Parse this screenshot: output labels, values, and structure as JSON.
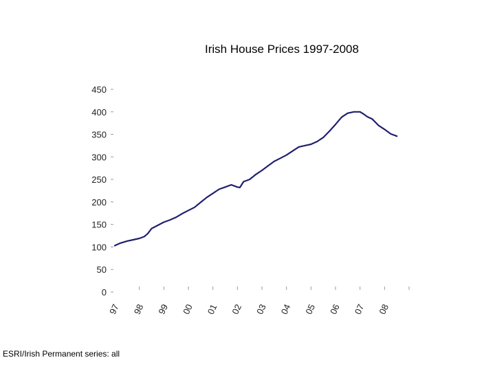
{
  "slide": {
    "title": "Irish House Prices 1997-2008",
    "source": "ESRI/Irish Permanent series: all"
  },
  "chart_data": {
    "type": "line",
    "title": "Irish House Prices 1997-2008",
    "xlabel": "",
    "ylabel": "",
    "ylim": [
      0,
      450
    ],
    "yticks": [
      0,
      50,
      100,
      150,
      200,
      250,
      300,
      350,
      400,
      450
    ],
    "ytick_labels": [
      "0",
      "50",
      "100",
      "150",
      "200",
      "250",
      "300",
      "350",
      "400",
      "450"
    ],
    "xlim": [
      1997,
      2009
    ],
    "xtick_labels": [
      "97",
      "98",
      "99",
      "00",
      "01",
      "02",
      "03",
      "04",
      "05",
      "06",
      "07",
      "08"
    ],
    "grid": false,
    "legend": "none",
    "line_color": "#1f1f6e",
    "series": [
      {
        "x": [
          1997.0,
          1997.2,
          1997.5,
          1997.75,
          1998.0,
          1998.2,
          1998.35,
          1998.5,
          1998.75,
          1999.0,
          1999.25,
          1999.5,
          1999.75,
          2000.0,
          2000.25,
          2000.5,
          2000.75,
          2001.0,
          2001.25,
          2001.5,
          2001.75,
          2002.0,
          2002.1,
          2002.25,
          2002.5,
          2002.75,
          2003.0,
          2003.25,
          2003.5,
          2003.75,
          2004.0,
          2004.25,
          2004.5,
          2004.75,
          2005.0,
          2005.25,
          2005.5,
          2005.75,
          2006.0,
          2006.25,
          2006.5,
          2006.75,
          2007.0,
          2007.15,
          2007.3,
          2007.5,
          2007.75,
          2008.0,
          2008.25,
          2008.5
        ],
        "values": [
          103,
          108,
          113,
          116,
          119,
          123,
          130,
          141,
          148,
          155,
          160,
          166,
          174,
          181,
          188,
          199,
          210,
          219,
          228,
          233,
          238,
          233,
          232,
          245,
          250,
          261,
          270,
          280,
          290,
          297,
          304,
          313,
          322,
          325,
          328,
          334,
          343,
          357,
          372,
          388,
          397,
          400,
          400,
          395,
          389,
          384,
          370,
          361,
          351,
          346
        ]
      }
    ]
  }
}
